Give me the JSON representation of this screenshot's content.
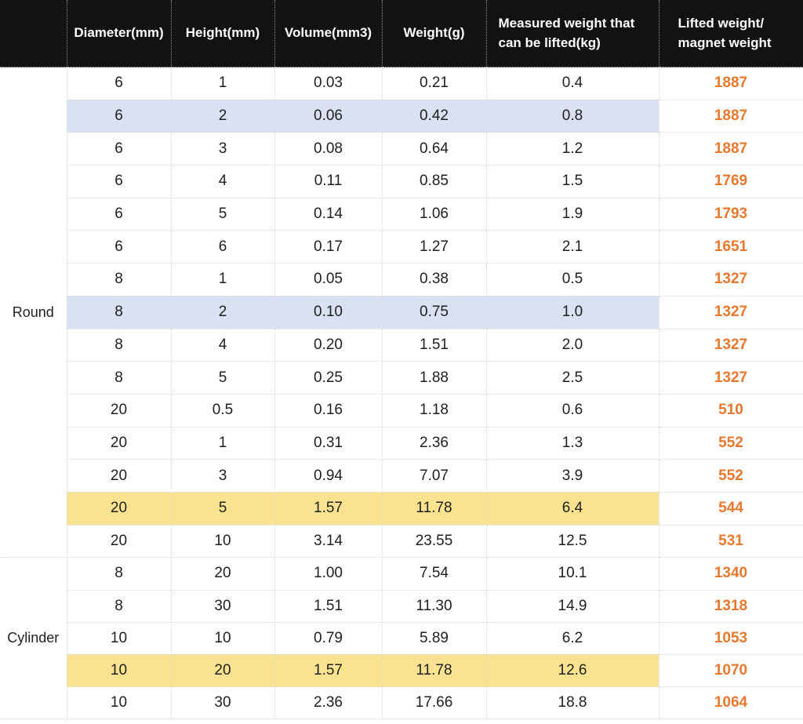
{
  "colors": {
    "header_bg": "#121212",
    "header_text": "#ffffff",
    "highlight_blue": "#d9e1f2",
    "highlight_yellow": "#fae390",
    "ratio_text": "#e8782d",
    "grid_line": "#d9d9d9"
  },
  "table": {
    "corner_label": "",
    "columns": [
      {
        "label": "Diameter(mm)"
      },
      {
        "label": "Height(mm)"
      },
      {
        "label": "Volume(mm3)"
      },
      {
        "label": "Weight(g)"
      },
      {
        "label": "Measured weight that\ncan be lifted(kg)"
      },
      {
        "label": "Lifted weight/\nmagnet weight"
      }
    ],
    "sections": [
      {
        "label": "Round",
        "rows": [
          {
            "cells": [
              "6",
              "1",
              "0.03",
              "0.21",
              "0.4",
              "1887"
            ],
            "highlight": null
          },
          {
            "cells": [
              "6",
              "2",
              "0.06",
              "0.42",
              "0.8",
              "1887"
            ],
            "highlight": "blue"
          },
          {
            "cells": [
              "6",
              "3",
              "0.08",
              "0.64",
              "1.2",
              "1887"
            ],
            "highlight": null
          },
          {
            "cells": [
              "6",
              "4",
              "0.11",
              "0.85",
              "1.5",
              "1769"
            ],
            "highlight": null
          },
          {
            "cells": [
              "6",
              "5",
              "0.14",
              "1.06",
              "1.9",
              "1793"
            ],
            "highlight": null
          },
          {
            "cells": [
              "6",
              "6",
              "0.17",
              "1.27",
              "2.1",
              "1651"
            ],
            "highlight": null
          },
          {
            "cells": [
              "8",
              "1",
              "0.05",
              "0.38",
              "0.5",
              "1327"
            ],
            "highlight": null
          },
          {
            "cells": [
              "8",
              "2",
              "0.10",
              "0.75",
              "1.0",
              "1327"
            ],
            "highlight": "blue"
          },
          {
            "cells": [
              "8",
              "4",
              "0.20",
              "1.51",
              "2.0",
              "1327"
            ],
            "highlight": null
          },
          {
            "cells": [
              "8",
              "5",
              "0.25",
              "1.88",
              "2.5",
              "1327"
            ],
            "highlight": null
          },
          {
            "cells": [
              "20",
              "0.5",
              "0.16",
              "1.18",
              "0.6",
              "510"
            ],
            "highlight": null
          },
          {
            "cells": [
              "20",
              "1",
              "0.31",
              "2.36",
              "1.3",
              "552"
            ],
            "highlight": null
          },
          {
            "cells": [
              "20",
              "3",
              "0.94",
              "7.07",
              "3.9",
              "552"
            ],
            "highlight": null
          },
          {
            "cells": [
              "20",
              "5",
              "1.57",
              "11.78",
              "6.4",
              "544"
            ],
            "highlight": "yellow"
          },
          {
            "cells": [
              "20",
              "10",
              "3.14",
              "23.55",
              "12.5",
              "531"
            ],
            "highlight": null
          }
        ]
      },
      {
        "label": "Cylinder",
        "rows": [
          {
            "cells": [
              "8",
              "20",
              "1.00",
              "7.54",
              "10.1",
              "1340"
            ],
            "highlight": null
          },
          {
            "cells": [
              "8",
              "30",
              "1.51",
              "11.30",
              "14.9",
              "1318"
            ],
            "highlight": null
          },
          {
            "cells": [
              "10",
              "10",
              "0.79",
              "5.89",
              "6.2",
              "1053"
            ],
            "highlight": null
          },
          {
            "cells": [
              "10",
              "20",
              "1.57",
              "11.78",
              "12.6",
              "1070"
            ],
            "highlight": "yellow"
          },
          {
            "cells": [
              "10",
              "30",
              "2.36",
              "17.66",
              "18.8",
              "1064"
            ],
            "highlight": null
          }
        ]
      }
    ]
  },
  "chart_data": {
    "type": "table",
    "title": "",
    "columns": [
      "",
      "Diameter(mm)",
      "Height(mm)",
      "Volume(mm3)",
      "Weight(g)",
      "Measured weight that can be lifted(kg)",
      "Lifted weight/magnet weight"
    ],
    "rows": [
      [
        "Round",
        6,
        1,
        0.03,
        0.21,
        0.4,
        1887
      ],
      [
        "Round",
        6,
        2,
        0.06,
        0.42,
        0.8,
        1887
      ],
      [
        "Round",
        6,
        3,
        0.08,
        0.64,
        1.2,
        1887
      ],
      [
        "Round",
        6,
        4,
        0.11,
        0.85,
        1.5,
        1769
      ],
      [
        "Round",
        6,
        5,
        0.14,
        1.06,
        1.9,
        1793
      ],
      [
        "Round",
        6,
        6,
        0.17,
        1.27,
        2.1,
        1651
      ],
      [
        "Round",
        8,
        1,
        0.05,
        0.38,
        0.5,
        1327
      ],
      [
        "Round",
        8,
        2,
        0.1,
        0.75,
        1.0,
        1327
      ],
      [
        "Round",
        8,
        4,
        0.2,
        1.51,
        2.0,
        1327
      ],
      [
        "Round",
        8,
        5,
        0.25,
        1.88,
        2.5,
        1327
      ],
      [
        "Round",
        20,
        0.5,
        0.16,
        1.18,
        0.6,
        510
      ],
      [
        "Round",
        20,
        1,
        0.31,
        2.36,
        1.3,
        552
      ],
      [
        "Round",
        20,
        3,
        0.94,
        7.07,
        3.9,
        552
      ],
      [
        "Round",
        20,
        5,
        1.57,
        11.78,
        6.4,
        544
      ],
      [
        "Round",
        20,
        10,
        3.14,
        23.55,
        12.5,
        531
      ],
      [
        "Cylinder",
        8,
        20,
        1.0,
        7.54,
        10.1,
        1340
      ],
      [
        "Cylinder",
        8,
        30,
        1.51,
        11.3,
        14.9,
        1318
      ],
      [
        "Cylinder",
        10,
        10,
        0.79,
        5.89,
        6.2,
        1053
      ],
      [
        "Cylinder",
        10,
        20,
        1.57,
        11.78,
        12.6,
        1070
      ],
      [
        "Cylinder",
        10,
        30,
        2.36,
        17.66,
        18.8,
        1064
      ]
    ],
    "layout_hints": {
      "row_group_column": "shape",
      "highlighted_rows_blue": [
        1,
        7
      ],
      "highlighted_rows_yellow": [
        13,
        18
      ],
      "last_column_style": "bold orange"
    }
  }
}
